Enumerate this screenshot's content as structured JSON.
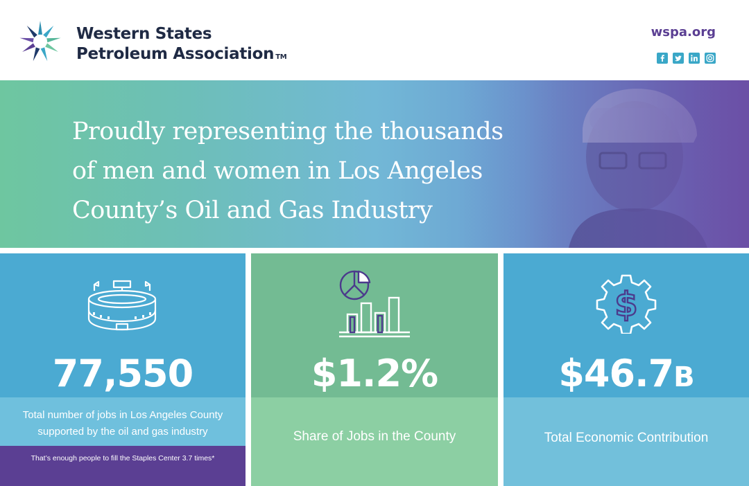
{
  "header": {
    "org_name_line1": "Western States",
    "org_name_line2": "Petroleum Association",
    "trademark": "TM",
    "website": "wspa.org",
    "social": [
      "facebook-icon",
      "twitter-icon",
      "linkedin-icon",
      "instagram-icon"
    ]
  },
  "banner": {
    "headline_line1": "Proudly representing the thousands",
    "headline_line2": "of men and women in Los Angeles",
    "headline_line3": "County’s Oil and Gas Industry"
  },
  "cards": [
    {
      "icon": "stadium-icon",
      "value": "77,550",
      "description": "Total number of jobs in Los Angeles County supported by the oil and gas industry",
      "note": "That’s enough people to fill the Staples Center 3.7 times*"
    },
    {
      "icon": "chart-icon",
      "value": "$1.2%",
      "description": "Share of Jobs in the County"
    },
    {
      "icon": "dollar-gear-icon",
      "value_main": "$46.7",
      "value_suffix": "B",
      "description": "Total Economic Contribution"
    }
  ],
  "colors": {
    "brand_purple": "#5b3f93",
    "navy": "#1f2a44",
    "blue": "#4baad2",
    "green": "#73bb93"
  }
}
